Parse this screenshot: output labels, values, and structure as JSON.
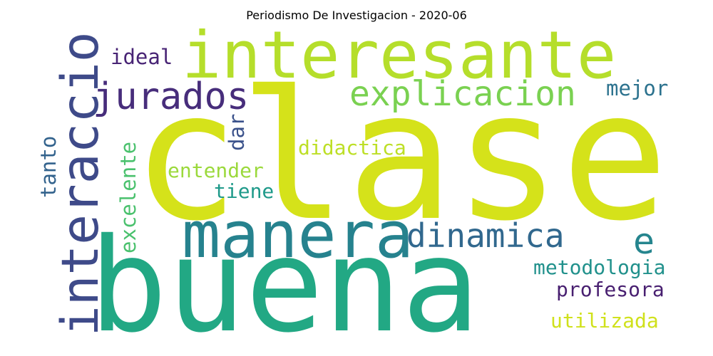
{
  "title": "Periodismo De Investigacion - 2020-06",
  "words": [
    {
      "text": "clase",
      "color": "#d5e21a"
    },
    {
      "text": "buena",
      "color": "#22a884"
    },
    {
      "text": "interesante",
      "color": "#b5de2b"
    },
    {
      "text": "manera",
      "color": "#26828e"
    },
    {
      "text": "interaccion",
      "color": "#3e4a89"
    },
    {
      "text": "jurados",
      "color": "#472d7b"
    },
    {
      "text": "explicacion",
      "color": "#7ad151"
    },
    {
      "text": "dinamica",
      "color": "#31688e"
    },
    {
      "text": "e",
      "color": "#25858e"
    },
    {
      "text": "ideal",
      "color": "#482475"
    },
    {
      "text": "mejor",
      "color": "#2c728e"
    },
    {
      "text": "didactica",
      "color": "#bddf26"
    },
    {
      "text": "entender",
      "color": "#9bd93c"
    },
    {
      "text": "tiene",
      "color": "#1f9a8a"
    },
    {
      "text": "dar",
      "color": "#3b528b"
    },
    {
      "text": "tanto",
      "color": "#33638d"
    },
    {
      "text": "excelente",
      "color": "#4ac16d"
    },
    {
      "text": "metodologia",
      "color": "#21918c"
    },
    {
      "text": "profesora",
      "color": "#481f70"
    },
    {
      "text": "utilizada",
      "color": "#d0e11c"
    }
  ]
}
